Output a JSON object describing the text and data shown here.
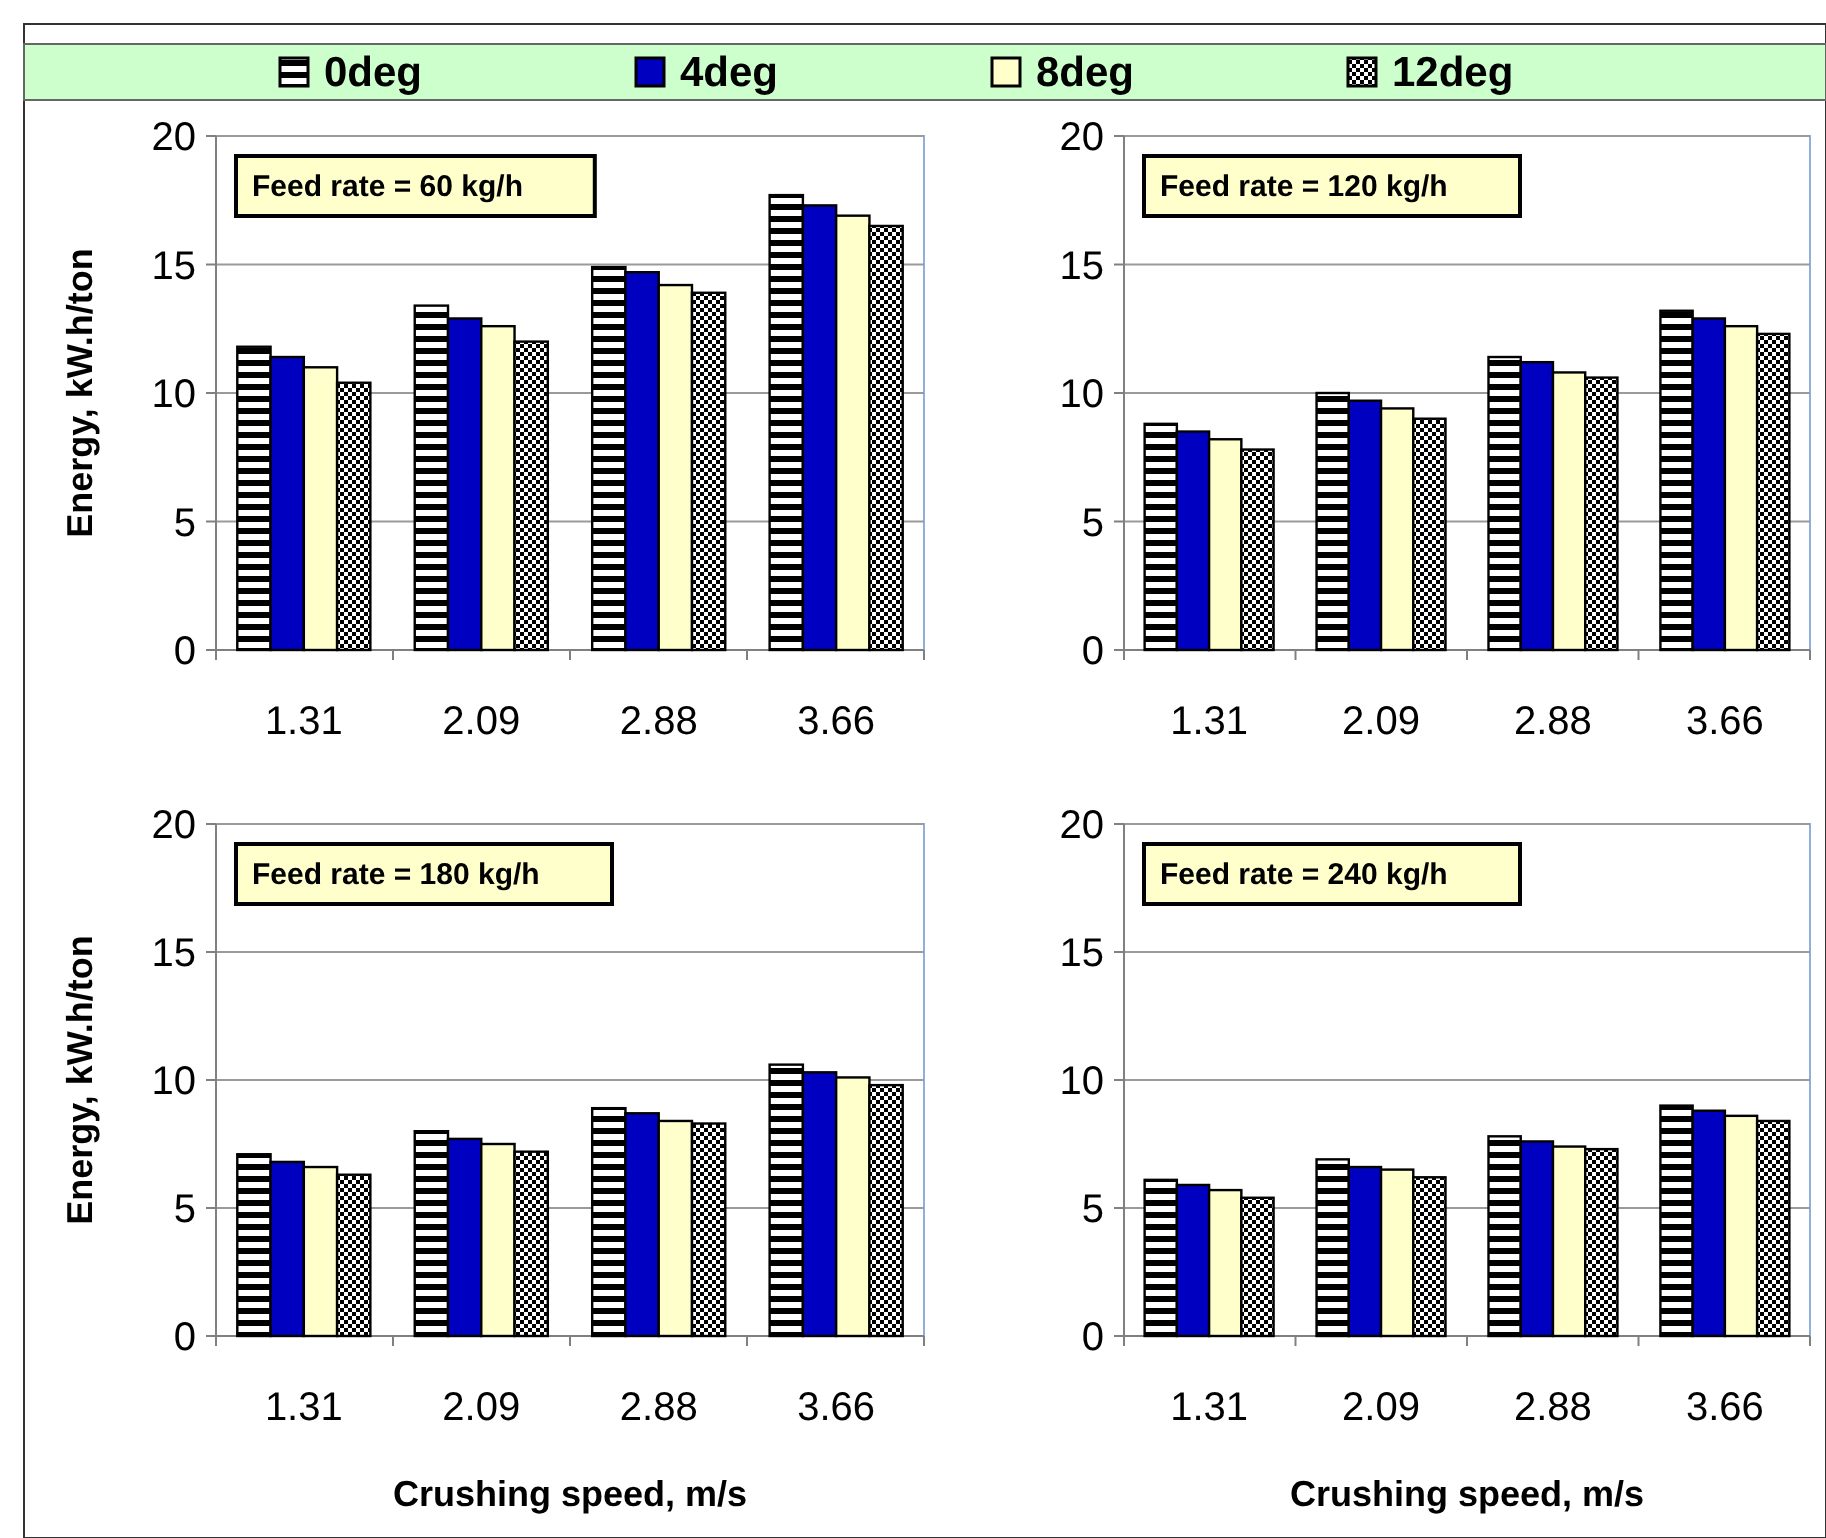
{
  "chart_data": [
    {
      "type": "bar",
      "annotations": [
        "Feed rate = 60 kg/h"
      ],
      "ylabel": "Energy, kW.h/ton",
      "categories": [
        "1.31",
        "2.09",
        "2.88",
        "3.66"
      ],
      "ylim": [
        0,
        20
      ],
      "yticks": [
        0,
        5,
        10,
        15,
        20
      ],
      "grid": "y",
      "legend": "top",
      "series": [
        {
          "name": "0deg",
          "color": "#000000",
          "values": [
            11.8,
            13.4,
            14.9,
            17.7
          ]
        },
        {
          "name": "4deg",
          "color": "#0000c0",
          "values": [
            11.4,
            12.9,
            14.7,
            17.3
          ]
        },
        {
          "name": "8deg",
          "color": "#ffffcc",
          "values": [
            11.0,
            12.6,
            14.2,
            16.9
          ]
        },
        {
          "name": "12deg",
          "color": "#000000",
          "values": [
            10.4,
            12.0,
            13.9,
            16.5
          ]
        }
      ]
    },
    {
      "type": "bar",
      "annotations": [
        "Feed rate = 120 kg/h"
      ],
      "categories": [
        "1.31",
        "2.09",
        "2.88",
        "3.66"
      ],
      "ylim": [
        0,
        20
      ],
      "yticks": [
        0,
        5,
        10,
        15,
        20
      ],
      "grid": "y",
      "series": [
        {
          "color": "#000000",
          "values": [
            8.8,
            10.0,
            11.4,
            13.2
          ]
        },
        {
          "color": "#0000c0",
          "values": [
            8.5,
            9.7,
            11.2,
            12.9
          ]
        },
        {
          "color": "#ffffcc",
          "values": [
            8.2,
            9.4,
            10.8,
            12.6
          ]
        },
        {
          "color": "#000000",
          "values": [
            7.8,
            9.0,
            10.6,
            12.3
          ]
        }
      ]
    },
    {
      "type": "bar",
      "annotations": [
        "Feed rate = 180 kg/h"
      ],
      "ylabel": "Energy, kW.h/ton",
      "xlabel": "Crushing speed, m/s",
      "categories": [
        "1.31",
        "2.09",
        "2.88",
        "3.66"
      ],
      "ylim": [
        0,
        20
      ],
      "yticks": [
        0,
        5,
        10,
        15,
        20
      ],
      "grid": "y",
      "series": [
        {
          "color": "#000000",
          "values": [
            7.1,
            8.0,
            8.9,
            10.6
          ]
        },
        {
          "color": "#0000c0",
          "values": [
            6.8,
            7.7,
            8.7,
            10.3
          ]
        },
        {
          "color": "#ffffcc",
          "values": [
            6.6,
            7.5,
            8.4,
            10.1
          ]
        },
        {
          "color": "#000000",
          "values": [
            6.3,
            7.2,
            8.3,
            9.8
          ]
        }
      ]
    },
    {
      "type": "bar",
      "annotations": [
        "Feed rate = 240 kg/h"
      ],
      "xlabel": "Crushing speed, m/s",
      "categories": [
        "1.31",
        "2.09",
        "2.88",
        "3.66"
      ],
      "ylim": [
        0,
        20
      ],
      "yticks": [
        0,
        5,
        10,
        15,
        20
      ],
      "grid": "y",
      "series": [
        {
          "color": "#000000",
          "values": [
            6.1,
            6.9,
            7.8,
            9.0
          ]
        },
        {
          "color": "#0000c0",
          "values": [
            5.9,
            6.6,
            7.6,
            8.8
          ]
        },
        {
          "color": "#ffffcc",
          "values": [
            5.7,
            6.5,
            7.4,
            8.6
          ]
        },
        {
          "color": "#000000",
          "values": [
            5.4,
            6.2,
            7.3,
            8.4
          ]
        }
      ]
    }
  ]
}
